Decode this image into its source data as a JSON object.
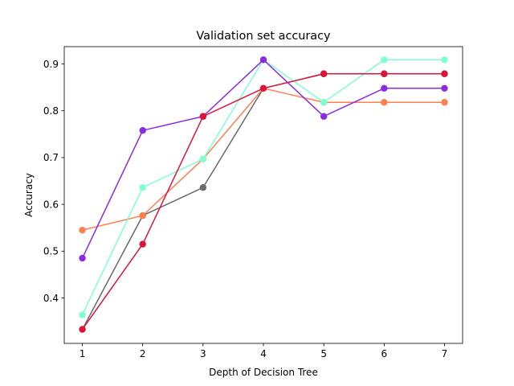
{
  "chart_data": {
    "type": "line",
    "title": "Validation set accuracy",
    "xlabel": "Depth of Decision Tree",
    "ylabel": "Accuracy",
    "x": [
      1,
      2,
      3,
      4,
      5,
      6,
      7
    ],
    "xlim": [
      0.7,
      7.3
    ],
    "ylim": [
      0.303,
      0.937
    ],
    "xticks": [
      "1",
      "2",
      "3",
      "4",
      "5",
      "6",
      "7"
    ],
    "yticks": [
      0.4,
      0.5,
      0.6,
      0.7,
      0.8,
      0.9
    ],
    "ytick_labels": [
      "0.4",
      "0.5",
      "0.6",
      "0.7",
      "0.8",
      "0.9"
    ],
    "grid": false,
    "legend": "none",
    "series": [
      {
        "color": "#696969",
        "values": [
          0.333,
          0.576,
          0.636,
          0.848,
          0.879,
          0.879,
          0.879
        ]
      },
      {
        "color": "#ff7f50",
        "values": [
          0.545,
          0.576,
          0.697,
          0.848,
          0.818,
          0.818,
          0.818
        ]
      },
      {
        "color": "#7fffd4",
        "values": [
          0.364,
          0.636,
          0.697,
          0.909,
          0.818,
          0.909,
          0.909
        ]
      },
      {
        "color": "#8a2be2",
        "values": [
          0.485,
          0.758,
          0.788,
          0.909,
          0.788,
          0.848,
          0.848
        ]
      },
      {
        "color": "#dc143c",
        "values": [
          0.333,
          0.515,
          0.788,
          0.848,
          0.879,
          0.879,
          0.879
        ]
      }
    ]
  }
}
